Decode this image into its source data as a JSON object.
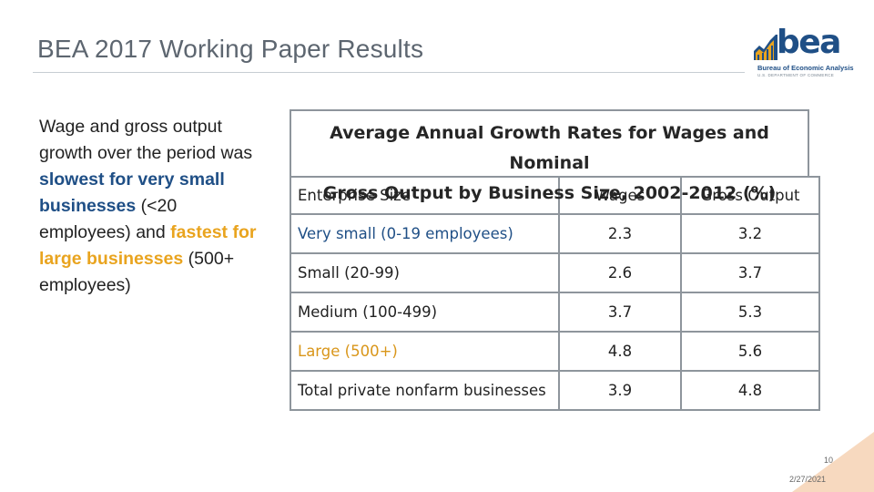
{
  "slide": {
    "title": "BEA 2017 Working Paper Results",
    "page_number": "10",
    "date": "2/27/2021"
  },
  "logo": {
    "word": "bea",
    "line1": "Bureau of Economic Analysis",
    "line2": "U.S. DEPARTMENT OF COMMERCE",
    "mark_color": "#1f4f86",
    "accent_color": "#e9a41f"
  },
  "summary": {
    "part1": "Wage and gross output growth over the period was ",
    "highlight_slow": "slowest for very small businesses",
    "part2": " (<20 employees) and ",
    "highlight_fast": "fastest for large businesses",
    "part3": " (500+ employees)"
  },
  "table": {
    "caption_line1": "Average Annual Growth Rates for Wages and Nominal",
    "caption_line2": "Gross Output by Business Size, 2002-2012 (%)",
    "headers": [
      "Enterprise Size",
      "Wages",
      "Gross Output"
    ],
    "rows": [
      {
        "size": "Very small (0-19 employees)",
        "wages": "2.3",
        "gross_output": "3.2"
      },
      {
        "size": "Small (20-99)",
        "wages": "2.6",
        "gross_output": "3.7"
      },
      {
        "size": "Medium (100-499)",
        "wages": "3.7",
        "gross_output": "5.3"
      },
      {
        "size": "Large (500+)",
        "wages": "4.8",
        "gross_output": "5.6"
      },
      {
        "size": "Total private nonfarm businesses",
        "wages": "3.9",
        "gross_output": "4.8"
      }
    ]
  },
  "colors": {
    "title": "#5d6670",
    "highlight_blue": "#1f4f86",
    "highlight_orange": "#e9a41f",
    "border": "#8e959c",
    "corner_accent": "#f7d9bf"
  }
}
